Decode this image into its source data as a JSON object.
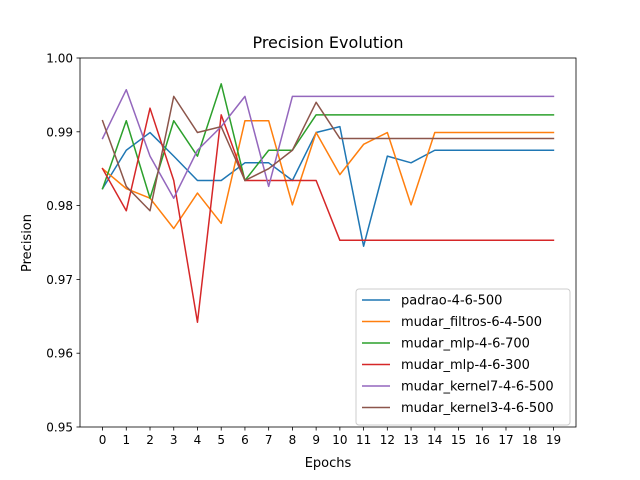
{
  "chart_data": {
    "type": "line",
    "title": "Precision Evolution",
    "xlabel": "Epochs",
    "ylabel": "Precision",
    "x": [
      0,
      1,
      2,
      3,
      4,
      5,
      6,
      7,
      8,
      9,
      10,
      11,
      12,
      13,
      14,
      15,
      16,
      17,
      18,
      19
    ],
    "xlim": [
      -0.95,
      19.95
    ],
    "ylim": [
      0.95,
      1.0
    ],
    "yticks": [
      "0.95",
      "0.96",
      "0.97",
      "0.98",
      "0.99",
      "1.00"
    ],
    "ytick_values": [
      0.95,
      0.96,
      0.97,
      0.98,
      0.99,
      1.0
    ],
    "grid": false,
    "legend_position": "lower-right",
    "series": [
      {
        "name": "padrao-4-6-500",
        "color": "#1f77b4",
        "values": [
          0.9823,
          0.9875,
          0.9899,
          0.9867,
          0.9834,
          0.9834,
          0.9858,
          0.9858,
          0.9834,
          0.9899,
          0.9907,
          0.9745,
          0.9867,
          0.9858,
          0.9875,
          0.9875,
          0.9875,
          0.9875,
          0.9875,
          0.9875
        ]
      },
      {
        "name": "mudar_filtros-6-4-500",
        "color": "#ff7f0e",
        "values": [
          0.985,
          0.9823,
          0.981,
          0.9769,
          0.9817,
          0.9776,
          0.9915,
          0.9915,
          0.9801,
          0.9899,
          0.9842,
          0.9883,
          0.9899,
          0.9801,
          0.9899,
          0.9899,
          0.9899,
          0.9899,
          0.9899,
          0.9899
        ]
      },
      {
        "name": "mudar_mlp-4-6-700",
        "color": "#2ca02c",
        "values": [
          0.9823,
          0.9915,
          0.981,
          0.9915,
          0.9867,
          0.9965,
          0.9834,
          0.9875,
          0.9875,
          0.9923,
          0.9923,
          0.9923,
          0.9923,
          0.9923,
          0.9923,
          0.9923,
          0.9923,
          0.9923,
          0.9923,
          0.9923
        ]
      },
      {
        "name": "mudar_mlp-4-6-300",
        "color": "#d62728",
        "values": [
          0.985,
          0.9793,
          0.9932,
          0.9834,
          0.9642,
          0.9923,
          0.9834,
          0.9834,
          0.9834,
          0.9834,
          0.9753,
          0.9753,
          0.9753,
          0.9753,
          0.9753,
          0.9753,
          0.9753,
          0.9753,
          0.9753,
          0.9753
        ]
      },
      {
        "name": "mudar_kernel7-4-6-500",
        "color": "#9467bd",
        "values": [
          0.9891,
          0.9957,
          0.9867,
          0.981,
          0.9875,
          0.9907,
          0.9948,
          0.9826,
          0.9948,
          0.9948,
          0.9948,
          0.9948,
          0.9948,
          0.9948,
          0.9948,
          0.9948,
          0.9948,
          0.9948,
          0.9948,
          0.9948
        ]
      },
      {
        "name": "mudar_kernel3-4-6-500",
        "color": "#8c564b",
        "values": [
          0.9915,
          0.9826,
          0.9793,
          0.9948,
          0.9899,
          0.9907,
          0.9834,
          0.985,
          0.9875,
          0.994,
          0.9891,
          0.9891,
          0.9891,
          0.9891,
          0.9891,
          0.9891,
          0.9891,
          0.9891,
          0.9891,
          0.9891
        ]
      }
    ]
  }
}
